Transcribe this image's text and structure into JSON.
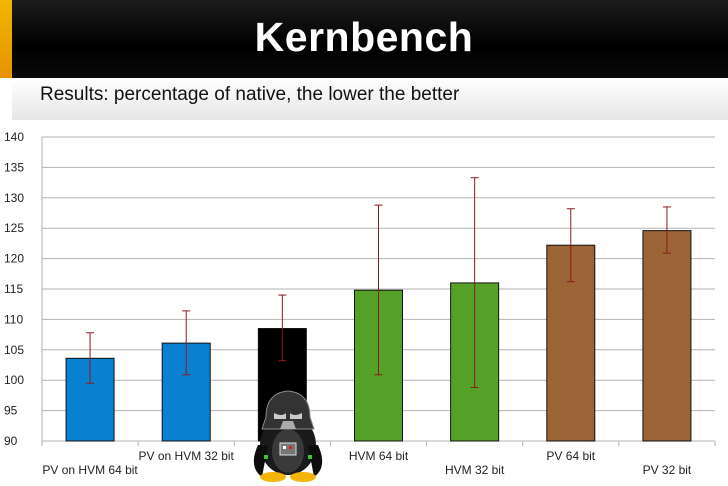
{
  "slide": {
    "title": "Kernbench",
    "subtitle": "Results: percentage of native, the lower the better"
  },
  "chart_data": {
    "type": "bar",
    "title": "",
    "xlabel": "",
    "ylabel": "",
    "ylim": [
      90,
      140
    ],
    "yticks": [
      90,
      95,
      100,
      105,
      110,
      115,
      120,
      125,
      130,
      135,
      140
    ],
    "grid": true,
    "categories": [
      "PV on HVM 64 bit",
      "PV on HVM 32 bit",
      "",
      "HVM 64 bit",
      "HVM 32 bit",
      "PV 64 bit",
      "PV 32 bit"
    ],
    "values": [
      103.6,
      106.1,
      108.5,
      114.8,
      116.0,
      122.2,
      124.6
    ],
    "error_low": [
      99.5,
      100.9,
      103.2,
      100.9,
      98.8,
      116.2,
      120.9
    ],
    "error_high": [
      107.8,
      111.4,
      114.0,
      128.8,
      133.3,
      128.2,
      128.5
    ],
    "bar_colors": [
      "#0a80d0",
      "#0a80d0",
      "#000000",
      "#55a026",
      "#55a026",
      "#9b6436",
      "#9b6436"
    ],
    "error_color": "#8b1a1a"
  },
  "mascot": {
    "icon": "darth-tux-mascot-icon"
  }
}
